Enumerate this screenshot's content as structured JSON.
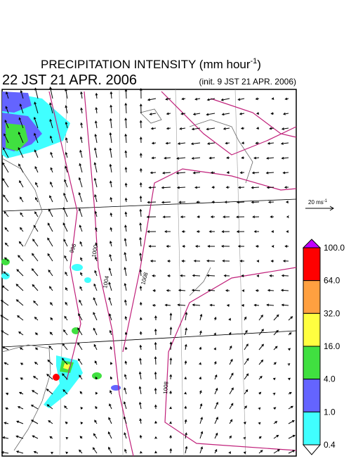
{
  "title": {
    "text": "PRECIPITATION INTENSITY (mm hour",
    "superscript": "-1",
    "close": ")"
  },
  "valid_time": "22 JST 21 APR. 2006",
  "init_time": "(init. 9 JST 21 APR. 2006)",
  "wind_scale": {
    "label": "20 ms",
    "superscript": "-1"
  },
  "colorbar": {
    "levels": [
      "100.0",
      "64.0",
      "32.0",
      "16.0",
      "4.0",
      "1.0",
      "0.4"
    ],
    "colors": [
      "#ff0000",
      "#ffa040",
      "#ffff40",
      "#40e040",
      "#6464ff",
      "#40ffff"
    ],
    "over_color": "#c000ff",
    "under_color": "#ffffff"
  },
  "isobar_labels": [
    "996",
    "1000",
    "1004",
    "1008",
    "1008"
  ]
}
